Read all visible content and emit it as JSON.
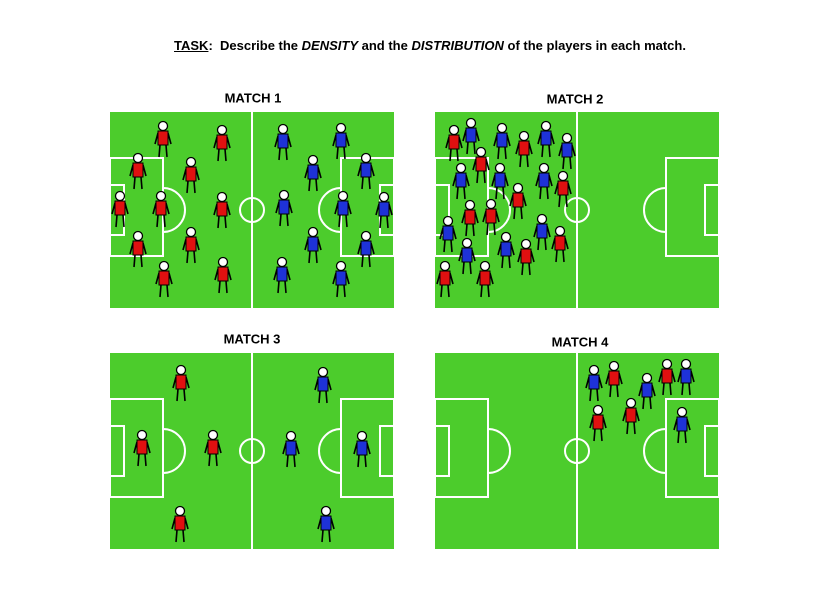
{
  "task": {
    "label": "TASK",
    "parts": [
      ":  Describe the ",
      "DENSITY",
      " and the ",
      "DISTRIBUTION",
      " of the players in each match."
    ]
  },
  "matches": [
    {
      "title": "MATCH 1"
    },
    {
      "title": "MATCH 2"
    },
    {
      "title": "MATCH 3"
    },
    {
      "title": "MATCH 4"
    }
  ]
}
